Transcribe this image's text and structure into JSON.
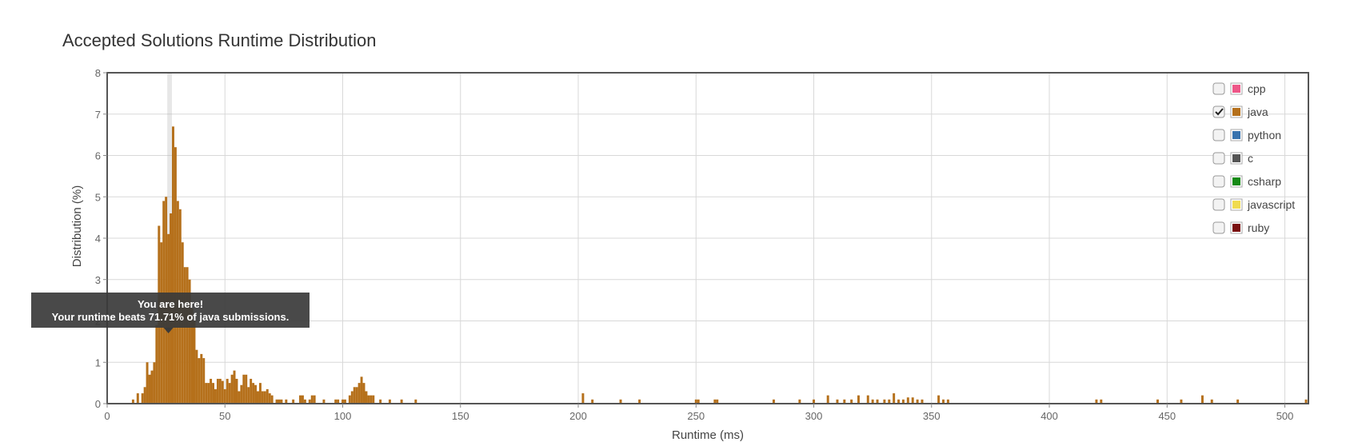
{
  "chart_data": {
    "type": "bar",
    "title": "Accepted Solutions Runtime Distribution",
    "xlabel": "Runtime (ms)",
    "ylabel": "Distribution (%)",
    "xlim": [
      0,
      510
    ],
    "ylim": [
      0,
      8
    ],
    "x_ticks": [
      "0",
      "50",
      "100",
      "150",
      "200",
      "250",
      "300",
      "350",
      "400",
      "450",
      "500"
    ],
    "y_ticks": [
      "0",
      "1",
      "2",
      "3",
      "4",
      "5",
      "6",
      "7",
      "8"
    ],
    "grid": true,
    "legend_position": "top-right",
    "highlight_x": 26,
    "series": [
      {
        "name": "java",
        "color": "#b5701b",
        "bars": [
          {
            "x": 11,
            "y": 0.1
          },
          {
            "x": 13,
            "y": 0.25
          },
          {
            "x": 15,
            "y": 0.25
          },
          {
            "x": 16,
            "y": 0.4
          },
          {
            "x": 17,
            "y": 1.0
          },
          {
            "x": 18,
            "y": 0.7
          },
          {
            "x": 19,
            "y": 0.8
          },
          {
            "x": 20,
            "y": 1.0
          },
          {
            "x": 21,
            "y": 1.9
          },
          {
            "x": 22,
            "y": 4.3
          },
          {
            "x": 23,
            "y": 3.9
          },
          {
            "x": 24,
            "y": 4.9
          },
          {
            "x": 25,
            "y": 5.0
          },
          {
            "x": 26,
            "y": 4.1
          },
          {
            "x": 27,
            "y": 4.6
          },
          {
            "x": 28,
            "y": 6.7
          },
          {
            "x": 29,
            "y": 6.2
          },
          {
            "x": 30,
            "y": 4.9
          },
          {
            "x": 31,
            "y": 4.7
          },
          {
            "x": 32,
            "y": 3.9
          },
          {
            "x": 33,
            "y": 3.3
          },
          {
            "x": 34,
            "y": 3.3
          },
          {
            "x": 35,
            "y": 3.0
          },
          {
            "x": 36,
            "y": 2.3
          },
          {
            "x": 37,
            "y": 2.0
          },
          {
            "x": 38,
            "y": 1.3
          },
          {
            "x": 39,
            "y": 1.1
          },
          {
            "x": 40,
            "y": 1.2
          },
          {
            "x": 41,
            "y": 1.1
          },
          {
            "x": 42,
            "y": 0.5
          },
          {
            "x": 43,
            "y": 0.5
          },
          {
            "x": 44,
            "y": 0.6
          },
          {
            "x": 45,
            "y": 0.5
          },
          {
            "x": 46,
            "y": 0.35
          },
          {
            "x": 47,
            "y": 0.6
          },
          {
            "x": 48,
            "y": 0.6
          },
          {
            "x": 49,
            "y": 0.55
          },
          {
            "x": 50,
            "y": 0.35
          },
          {
            "x": 51,
            "y": 0.6
          },
          {
            "x": 52,
            "y": 0.5
          },
          {
            "x": 53,
            "y": 0.7
          },
          {
            "x": 54,
            "y": 0.8
          },
          {
            "x": 55,
            "y": 0.6
          },
          {
            "x": 56,
            "y": 0.3
          },
          {
            "x": 57,
            "y": 0.45
          },
          {
            "x": 58,
            "y": 0.7
          },
          {
            "x": 59,
            "y": 0.7
          },
          {
            "x": 60,
            "y": 0.4
          },
          {
            "x": 61,
            "y": 0.6
          },
          {
            "x": 62,
            "y": 0.5
          },
          {
            "x": 63,
            "y": 0.45
          },
          {
            "x": 64,
            "y": 0.3
          },
          {
            "x": 65,
            "y": 0.5
          },
          {
            "x": 66,
            "y": 0.3
          },
          {
            "x": 67,
            "y": 0.3
          },
          {
            "x": 68,
            "y": 0.35
          },
          {
            "x": 69,
            "y": 0.25
          },
          {
            "x": 70,
            "y": 0.2
          },
          {
            "x": 72,
            "y": 0.1
          },
          {
            "x": 73,
            "y": 0.1
          },
          {
            "x": 74,
            "y": 0.1
          },
          {
            "x": 76,
            "y": 0.1
          },
          {
            "x": 79,
            "y": 0.1
          },
          {
            "x": 82,
            "y": 0.2
          },
          {
            "x": 83,
            "y": 0.2
          },
          {
            "x": 84,
            "y": 0.1
          },
          {
            "x": 86,
            "y": 0.1
          },
          {
            "x": 87,
            "y": 0.2
          },
          {
            "x": 88,
            "y": 0.2
          },
          {
            "x": 92,
            "y": 0.1
          },
          {
            "x": 97,
            "y": 0.1
          },
          {
            "x": 98,
            "y": 0.1
          },
          {
            "x": 100,
            "y": 0.1
          },
          {
            "x": 101,
            "y": 0.1
          },
          {
            "x": 103,
            "y": 0.2
          },
          {
            "x": 104,
            "y": 0.3
          },
          {
            "x": 105,
            "y": 0.4
          },
          {
            "x": 106,
            "y": 0.4
          },
          {
            "x": 107,
            "y": 0.5
          },
          {
            "x": 108,
            "y": 0.65
          },
          {
            "x": 109,
            "y": 0.5
          },
          {
            "x": 110,
            "y": 0.3
          },
          {
            "x": 111,
            "y": 0.2
          },
          {
            "x": 112,
            "y": 0.2
          },
          {
            "x": 113,
            "y": 0.2
          },
          {
            "x": 116,
            "y": 0.1
          },
          {
            "x": 120,
            "y": 0.1
          },
          {
            "x": 125,
            "y": 0.1
          },
          {
            "x": 131,
            "y": 0.1
          },
          {
            "x": 202,
            "y": 0.25
          },
          {
            "x": 206,
            "y": 0.1
          },
          {
            "x": 218,
            "y": 0.1
          },
          {
            "x": 226,
            "y": 0.1
          },
          {
            "x": 250,
            "y": 0.1
          },
          {
            "x": 251,
            "y": 0.1
          },
          {
            "x": 258,
            "y": 0.1
          },
          {
            "x": 259,
            "y": 0.1
          },
          {
            "x": 283,
            "y": 0.1
          },
          {
            "x": 294,
            "y": 0.1
          },
          {
            "x": 300,
            "y": 0.1
          },
          {
            "x": 306,
            "y": 0.2
          },
          {
            "x": 310,
            "y": 0.1
          },
          {
            "x": 313,
            "y": 0.1
          },
          {
            "x": 316,
            "y": 0.1
          },
          {
            "x": 319,
            "y": 0.2
          },
          {
            "x": 323,
            "y": 0.2
          },
          {
            "x": 325,
            "y": 0.1
          },
          {
            "x": 327,
            "y": 0.1
          },
          {
            "x": 330,
            "y": 0.1
          },
          {
            "x": 332,
            "y": 0.1
          },
          {
            "x": 334,
            "y": 0.25
          },
          {
            "x": 336,
            "y": 0.1
          },
          {
            "x": 338,
            "y": 0.1
          },
          {
            "x": 340,
            "y": 0.15
          },
          {
            "x": 342,
            "y": 0.15
          },
          {
            "x": 344,
            "y": 0.1
          },
          {
            "x": 346,
            "y": 0.1
          },
          {
            "x": 353,
            "y": 0.2
          },
          {
            "x": 355,
            "y": 0.1
          },
          {
            "x": 357,
            "y": 0.1
          },
          {
            "x": 420,
            "y": 0.1
          },
          {
            "x": 422,
            "y": 0.1
          },
          {
            "x": 446,
            "y": 0.1
          },
          {
            "x": 456,
            "y": 0.1
          },
          {
            "x": 465,
            "y": 0.2
          },
          {
            "x": 469,
            "y": 0.1
          },
          {
            "x": 480,
            "y": 0.1
          },
          {
            "x": 509,
            "y": 0.1
          }
        ]
      }
    ],
    "tooltip": {
      "line1": "You are here!",
      "line2": "Your runtime beats 71.71% of java submissions."
    }
  },
  "legend": [
    {
      "name": "cpp",
      "color": "#ee5788",
      "checked": false
    },
    {
      "name": "java",
      "color": "#b5701b",
      "checked": true
    },
    {
      "name": "python",
      "color": "#3873ae",
      "checked": false
    },
    {
      "name": "c",
      "color": "#555555",
      "checked": false
    },
    {
      "name": "csharp",
      "color": "#178a17",
      "checked": false
    },
    {
      "name": "javascript",
      "color": "#f0db4f",
      "checked": false
    },
    {
      "name": "ruby",
      "color": "#7a1010",
      "checked": false
    }
  ]
}
